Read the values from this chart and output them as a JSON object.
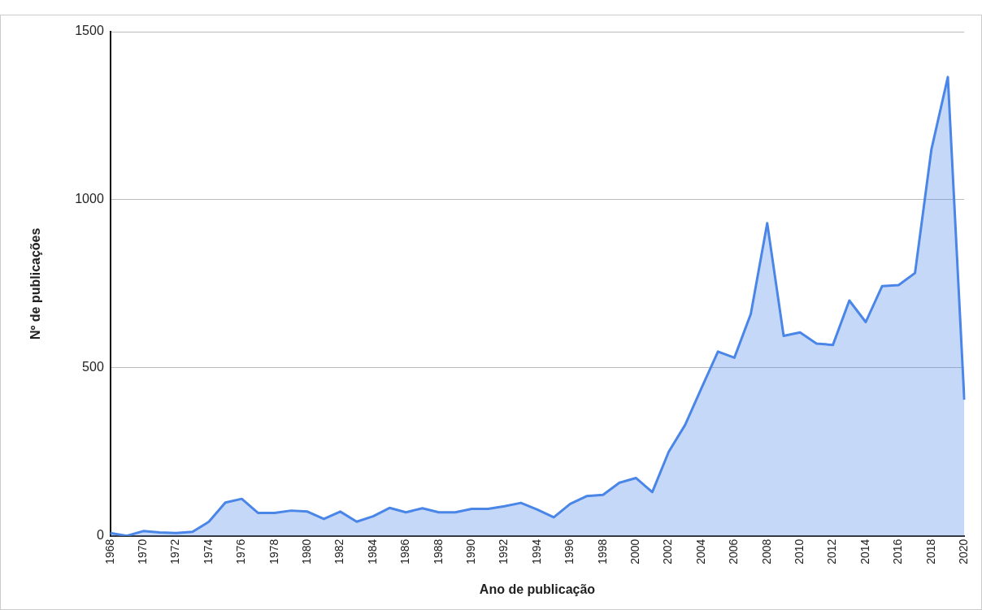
{
  "chart_data": {
    "type": "area",
    "xlabel": "Ano de publicação",
    "ylabel": "Nº de publicações",
    "categories": [
      "1968",
      null,
      "1970",
      null,
      "1972",
      null,
      "1974",
      null,
      "1976",
      null,
      "1978",
      null,
      "1980",
      null,
      "1982",
      null,
      "1984",
      null,
      "1986",
      null,
      "1988",
      null,
      "1990",
      null,
      "1992",
      null,
      "1994",
      null,
      "1996",
      null,
      "1998",
      null,
      "2000",
      null,
      "2002",
      null,
      "2004",
      null,
      "2006",
      null,
      "2008",
      null,
      "2010",
      null,
      "2012",
      null,
      "2014",
      null,
      "2016",
      null,
      "2018",
      null,
      "2020"
    ],
    "series": [
      {
        "color": "#4a86e8",
        "values": [
          8,
          0,
          14,
          10,
          8,
          12,
          42,
          99,
          110,
          68,
          68,
          75,
          72,
          50,
          72,
          42,
          58,
          83,
          70,
          82,
          70,
          70,
          80,
          80,
          88,
          98,
          78,
          55,
          95,
          118,
          122,
          158,
          172,
          130,
          250,
          330,
          440,
          548,
          530,
          660,
          930,
          595,
          605,
          572,
          568,
          700,
          636,
          743,
          746,
          782,
          1150,
          1365,
          405
        ]
      }
    ],
    "ylim": [
      0,
      1500
    ],
    "yticks": [
      0,
      500,
      1000,
      1500
    ],
    "grid": "y",
    "legend": false
  }
}
